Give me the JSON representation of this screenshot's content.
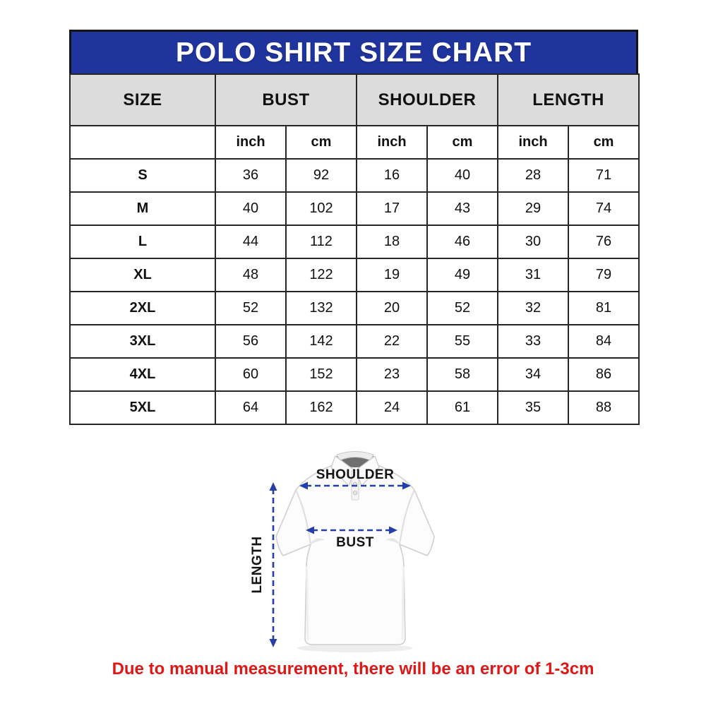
{
  "title": "POLO SHIRT SIZE CHART",
  "table": {
    "column_groups": [
      "SIZE",
      "BUST",
      "SHOULDER",
      "LENGTH"
    ],
    "unit_headers": [
      "inch",
      "cm",
      "inch",
      "cm",
      "inch",
      "cm"
    ],
    "rows": [
      {
        "size": "S",
        "values": [
          "36",
          "92",
          "16",
          "40",
          "28",
          "71"
        ]
      },
      {
        "size": "M",
        "values": [
          "40",
          "102",
          "17",
          "43",
          "29",
          "74"
        ]
      },
      {
        "size": "L",
        "values": [
          "44",
          "112",
          "18",
          "46",
          "30",
          "76"
        ]
      },
      {
        "size": "XL",
        "values": [
          "48",
          "122",
          "19",
          "49",
          "31",
          "79"
        ]
      },
      {
        "size": "2XL",
        "values": [
          "52",
          "132",
          "20",
          "52",
          "32",
          "81"
        ]
      },
      {
        "size": "3XL",
        "values": [
          "56",
          "142",
          "22",
          "55",
          "33",
          "84"
        ]
      },
      {
        "size": "4XL",
        "values": [
          "60",
          "152",
          "23",
          "58",
          "34",
          "86"
        ]
      },
      {
        "size": "5XL",
        "values": [
          "64",
          "162",
          "24",
          "61",
          "35",
          "88"
        ]
      }
    ]
  },
  "diagram": {
    "shoulder_label": "SHOULDER",
    "bust_label": "BUST",
    "length_label": "LENGTH"
  },
  "note": "Due to manual measurement, there will be an error of 1-3cm",
  "colors": {
    "title_bar_blue": "#20349e",
    "header_gray": "#dcdcdc",
    "table_border_dark": "#262626",
    "arrow_blue": "#2440a8",
    "note_red": "#de1717",
    "title_text_white": "#ffffff"
  }
}
